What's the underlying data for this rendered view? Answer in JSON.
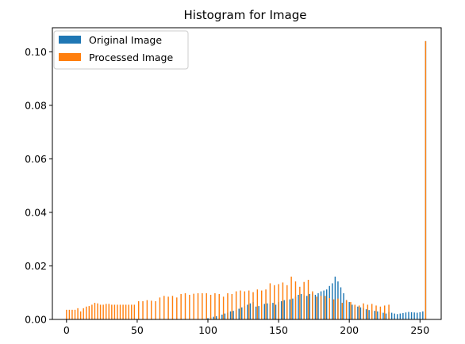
{
  "chart_data": {
    "type": "bar",
    "title": "Histogram for Image",
    "xlabel": "",
    "ylabel": "",
    "xlim": [
      -10,
      265
    ],
    "ylim": [
      0,
      0.109
    ],
    "xticks": [
      0,
      50,
      100,
      150,
      200,
      250
    ],
    "yticks": [
      0.0,
      0.02,
      0.04,
      0.06,
      0.08,
      0.1
    ],
    "ytick_labels": [
      "0.00",
      "0.02",
      "0.04",
      "0.06",
      "0.08",
      "0.10"
    ],
    "grid": false,
    "legend_position": "top-left",
    "series": [
      {
        "name": "Original Image",
        "color": "#1f77b4",
        "points": [
          [
            100,
            0.0005
          ],
          [
            102,
            0.0008
          ],
          [
            104,
            0.001
          ],
          [
            106,
            0.0012
          ],
          [
            108,
            0.0015
          ],
          [
            110,
            0.0018
          ],
          [
            112,
            0.0022
          ],
          [
            114,
            0.0025
          ],
          [
            116,
            0.003
          ],
          [
            118,
            0.0032
          ],
          [
            120,
            0.0035
          ],
          [
            122,
            0.004
          ],
          [
            124,
            0.0045
          ],
          [
            126,
            0.005
          ],
          [
            128,
            0.0055
          ],
          [
            130,
            0.006
          ],
          [
            132,
            0.0065
          ],
          [
            134,
            0.0048
          ],
          [
            136,
            0.005
          ],
          [
            138,
            0.0055
          ],
          [
            140,
            0.0058
          ],
          [
            142,
            0.006
          ],
          [
            144,
            0.0058
          ],
          [
            146,
            0.0062
          ],
          [
            148,
            0.0055
          ],
          [
            150,
            0.0065
          ],
          [
            152,
            0.0068
          ],
          [
            154,
            0.0072
          ],
          [
            156,
            0.007
          ],
          [
            158,
            0.0075
          ],
          [
            160,
            0.0078
          ],
          [
            162,
            0.0085
          ],
          [
            164,
            0.0092
          ],
          [
            166,
            0.0095
          ],
          [
            168,
            0.009
          ],
          [
            170,
            0.0088
          ],
          [
            172,
            0.0095
          ],
          [
            174,
            0.0098
          ],
          [
            176,
            0.0092
          ],
          [
            178,
            0.0098
          ],
          [
            180,
            0.0105
          ],
          [
            182,
            0.0108
          ],
          [
            184,
            0.0112
          ],
          [
            186,
            0.0125
          ],
          [
            188,
            0.0135
          ],
          [
            190,
            0.016
          ],
          [
            192,
            0.0142
          ],
          [
            194,
            0.012
          ],
          [
            196,
            0.0098
          ],
          [
            198,
            0.0072
          ],
          [
            200,
            0.0065
          ],
          [
            202,
            0.0055
          ],
          [
            204,
            0.0052
          ],
          [
            206,
            0.0048
          ],
          [
            208,
            0.0045
          ],
          [
            210,
            0.0042
          ],
          [
            212,
            0.0038
          ],
          [
            214,
            0.0035
          ],
          [
            216,
            0.0034
          ],
          [
            218,
            0.0032
          ],
          [
            220,
            0.003
          ],
          [
            222,
            0.0028
          ],
          [
            224,
            0.0025
          ],
          [
            226,
            0.0022
          ],
          [
            228,
            0.0028
          ],
          [
            230,
            0.0025
          ],
          [
            232,
            0.0022
          ],
          [
            234,
            0.002
          ],
          [
            236,
            0.0022
          ],
          [
            238,
            0.0024
          ],
          [
            240,
            0.0026
          ],
          [
            242,
            0.0028
          ],
          [
            244,
            0.0027
          ],
          [
            246,
            0.0026
          ],
          [
            248,
            0.0025
          ],
          [
            250,
            0.0027
          ],
          [
            252,
            0.003
          ],
          [
            254,
            0.104
          ]
        ]
      },
      {
        "name": "Processed Image",
        "color": "#ff7f0e",
        "points": [
          [
            0,
            0.0036
          ],
          [
            2,
            0.0036
          ],
          [
            4,
            0.0036
          ],
          [
            6,
            0.0036
          ],
          [
            8,
            0.0042
          ],
          [
            10,
            0.003
          ],
          [
            12,
            0.0042
          ],
          [
            14,
            0.0048
          ],
          [
            16,
            0.005
          ],
          [
            18,
            0.0055
          ],
          [
            20,
            0.0062
          ],
          [
            22,
            0.006
          ],
          [
            24,
            0.0055
          ],
          [
            26,
            0.0055
          ],
          [
            28,
            0.0058
          ],
          [
            30,
            0.0058
          ],
          [
            32,
            0.0055
          ],
          [
            34,
            0.0055
          ],
          [
            36,
            0.0055
          ],
          [
            38,
            0.0055
          ],
          [
            40,
            0.0055
          ],
          [
            42,
            0.0055
          ],
          [
            44,
            0.0055
          ],
          [
            46,
            0.0055
          ],
          [
            48,
            0.0055
          ],
          [
            51,
            0.0068
          ],
          [
            54,
            0.0068
          ],
          [
            57,
            0.0072
          ],
          [
            60,
            0.007
          ],
          [
            63,
            0.0068
          ],
          [
            66,
            0.0082
          ],
          [
            69,
            0.0088
          ],
          [
            72,
            0.0085
          ],
          [
            75,
            0.0088
          ],
          [
            78,
            0.0082
          ],
          [
            81,
            0.0095
          ],
          [
            84,
            0.0098
          ],
          [
            87,
            0.0092
          ],
          [
            90,
            0.0096
          ],
          [
            93,
            0.0098
          ],
          [
            96,
            0.0098
          ],
          [
            99,
            0.0098
          ],
          [
            102,
            0.0092
          ],
          [
            105,
            0.0098
          ],
          [
            108,
            0.0095
          ],
          [
            111,
            0.0085
          ],
          [
            114,
            0.0098
          ],
          [
            117,
            0.0095
          ],
          [
            120,
            0.0105
          ],
          [
            123,
            0.0108
          ],
          [
            126,
            0.0105
          ],
          [
            129,
            0.0108
          ],
          [
            132,
            0.0102
          ],
          [
            135,
            0.0112
          ],
          [
            138,
            0.0108
          ],
          [
            141,
            0.0112
          ],
          [
            144,
            0.0135
          ],
          [
            147,
            0.0128
          ],
          [
            150,
            0.0132
          ],
          [
            153,
            0.0138
          ],
          [
            156,
            0.0128
          ],
          [
            159,
            0.016
          ],
          [
            162,
            0.0142
          ],
          [
            165,
            0.0122
          ],
          [
            168,
            0.014
          ],
          [
            171,
            0.0148
          ],
          [
            174,
            0.0105
          ],
          [
            177,
            0.0085
          ],
          [
            180,
            0.0088
          ],
          [
            183,
            0.0088
          ],
          [
            186,
            0.008
          ],
          [
            189,
            0.0075
          ],
          [
            192,
            0.0078
          ],
          [
            195,
            0.0062
          ],
          [
            198,
            0.0072
          ],
          [
            201,
            0.0065
          ],
          [
            204,
            0.0055
          ],
          [
            207,
            0.0052
          ],
          [
            210,
            0.006
          ],
          [
            213,
            0.0055
          ],
          [
            216,
            0.0058
          ],
          [
            219,
            0.0052
          ],
          [
            222,
            0.0048
          ],
          [
            225,
            0.0052
          ],
          [
            228,
            0.0055
          ],
          [
            254,
            0.104
          ]
        ]
      }
    ]
  }
}
